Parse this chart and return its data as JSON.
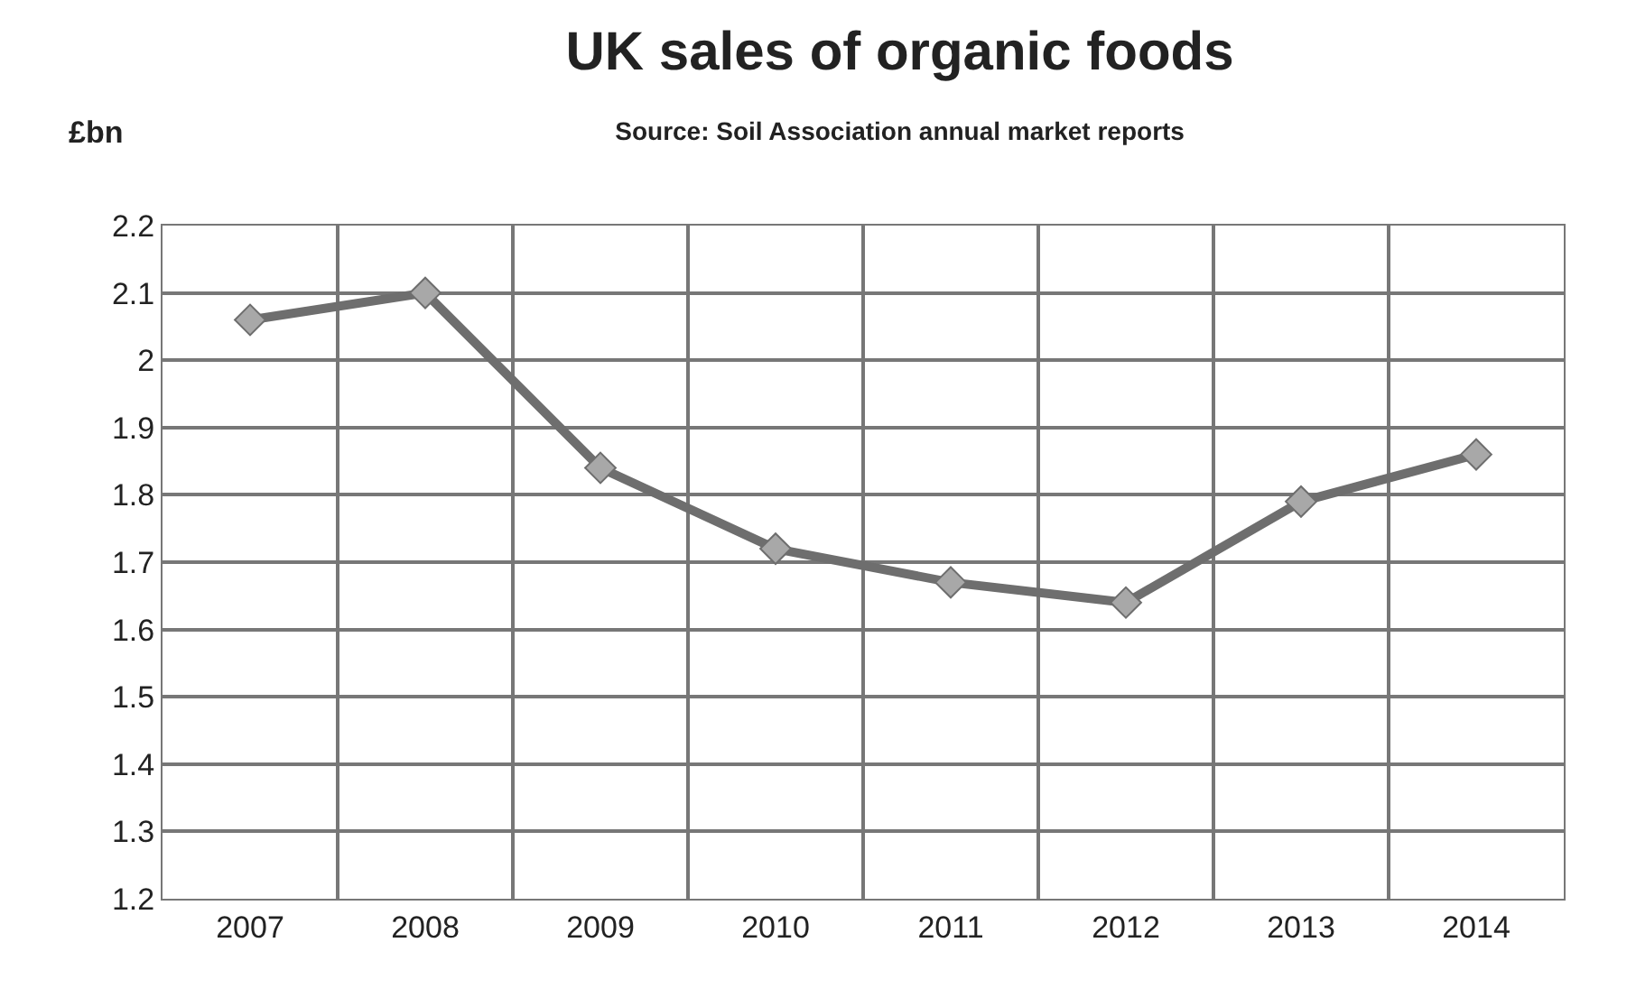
{
  "chart_data": {
    "type": "line",
    "title": "UK sales of organic foods",
    "subtitle": "Source: Soil Association annual market reports",
    "ylabel": "£bn",
    "categories": [
      "2007",
      "2008",
      "2009",
      "2010",
      "2011",
      "2012",
      "2013",
      "2014"
    ],
    "series": [
      {
        "color": "#6e6e6e",
        "values": [
          2.06,
          2.1,
          1.84,
          1.72,
          1.67,
          1.64,
          1.79,
          1.86
        ]
      }
    ],
    "ylim": [
      1.2,
      2.2
    ],
    "yticks": [
      1.2,
      1.3,
      1.4,
      1.5,
      1.6,
      1.7,
      1.8,
      1.9,
      {
        "value": 2.0,
        "label": "2"
      },
      2.1,
      2.2
    ],
    "grid": true,
    "marker": "diamond",
    "line_style": "solid"
  }
}
